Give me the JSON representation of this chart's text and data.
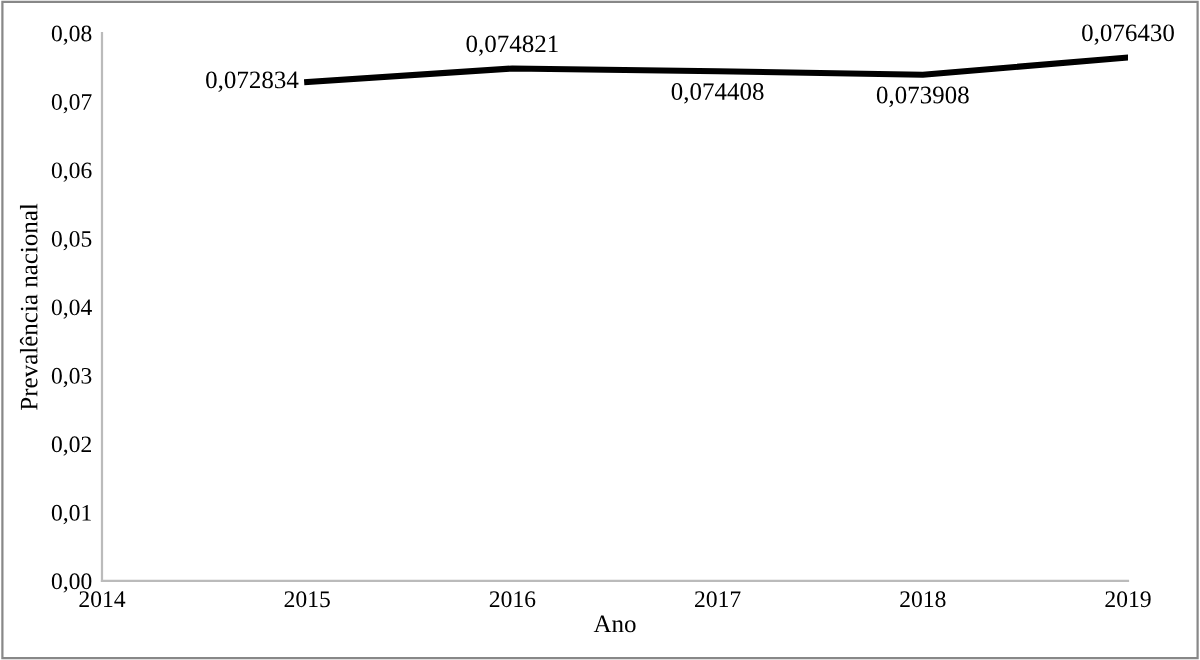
{
  "chart_data": {
    "type": "line",
    "xlabel": "Ano",
    "ylabel": "Prevalência nacional",
    "x": [
      2015,
      2016,
      2017,
      2018,
      2019
    ],
    "series": [
      {
        "color": "#000000",
        "values": [
          0.072834,
          0.074821,
          0.074408,
          0.073908,
          0.07643
        ],
        "value_labels": [
          "0,072834",
          "0,074821",
          "0,074408",
          "0,073908",
          "0,076430"
        ]
      }
    ],
    "xlim": [
      2014,
      2019
    ],
    "xticks": [
      2014,
      2015,
      2016,
      2017,
      2018,
      2019
    ],
    "ylim": [
      0,
      0.08
    ],
    "yticks": [
      {
        "value": 0,
        "label": "0,00"
      },
      {
        "value": 0.01,
        "label": "0,01"
      },
      {
        "value": 0.02,
        "label": "0,02"
      },
      {
        "value": 0.03,
        "label": "0,03"
      },
      {
        "value": 0.04,
        "label": "0,04"
      },
      {
        "value": 0.05,
        "label": "0,05"
      },
      {
        "value": 0.06,
        "label": "0,06"
      },
      {
        "value": 0.07,
        "label": "0,07"
      },
      {
        "value": 0.08,
        "label": "0,08"
      }
    ],
    "grid": false,
    "marker": "none",
    "line_style": "solid"
  }
}
